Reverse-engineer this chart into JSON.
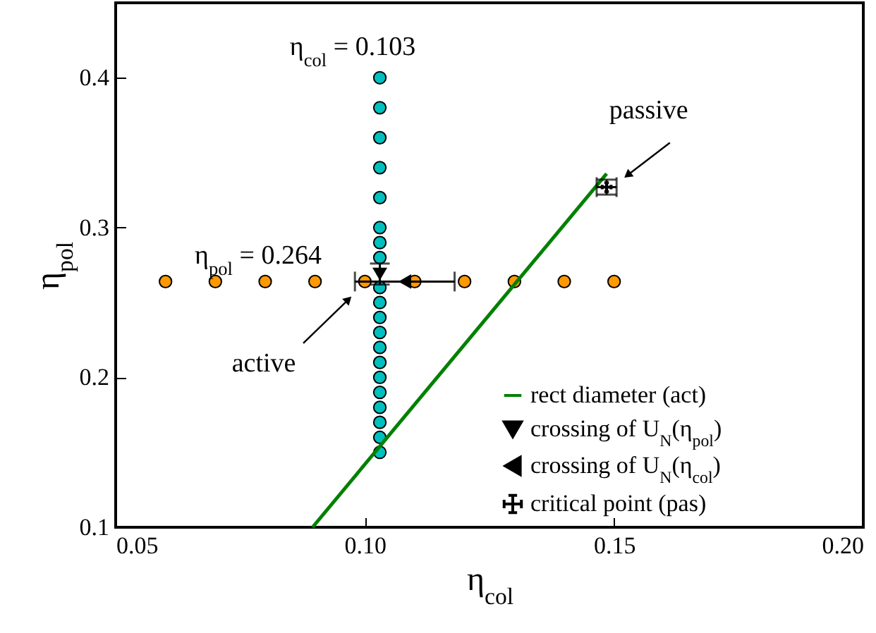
{
  "chart_data": {
    "type": "scatter",
    "xlabel": "η$_{col}$",
    "ylabel": "η$_{pol}$",
    "xlim": [
      0.05,
      0.2
    ],
    "xticks": [
      {
        "value": 0.05,
        "label": "0.05"
      },
      {
        "value": 0.1,
        "label": "0.10"
      },
      {
        "value": 0.15,
        "label": "0.15"
      },
      {
        "value": 0.2,
        "label": "0.20"
      }
    ],
    "ylim": [
      0.1,
      0.45
    ],
    "yticks": [
      0.1,
      0.2,
      0.3,
      0.4
    ],
    "legend": "bottom right",
    "series": [
      {
        "color": "#00bfbf",
        "marker": "circle",
        "x": [
          0.103,
          0.103,
          0.103,
          0.103,
          0.103,
          0.103,
          0.103,
          0.103,
          0.103,
          0.103,
          0.103,
          0.103,
          0.103,
          0.103,
          0.103,
          0.103,
          0.103,
          0.103,
          0.103,
          0.103
        ],
        "values": [
          0.15,
          0.16,
          0.17,
          0.18,
          0.19,
          0.2,
          0.21,
          0.22,
          0.23,
          0.24,
          0.25,
          0.26,
          0.28,
          0.29,
          0.3,
          0.32,
          0.34,
          0.36,
          0.38,
          0.4
        ]
      },
      {
        "color": "#ff9900",
        "marker": "circle",
        "x": [
          0.06,
          0.07,
          0.08,
          0.09,
          0.1,
          0.11,
          0.12,
          0.13,
          0.14,
          0.15
        ],
        "values": [
          0.264,
          0.264,
          0.264,
          0.264,
          0.264,
          0.264,
          0.264,
          0.264,
          0.264,
          0.264
        ]
      },
      {
        "type": "line",
        "name": "rect diameter (act)",
        "color": "#008000",
        "x": [
          0.0895,
          0.1485
        ],
        "values": [
          0.1,
          0.336
        ]
      },
      {
        "name": "crossing of U$_{N}$(η$_{pol}$)",
        "color": "#000000",
        "marker": "triangle-down",
        "x": [
          0.103
        ],
        "values": [
          0.269
        ],
        "errors": [
          [
            0.262,
            0.276
          ]
        ]
      },
      {
        "name": "crossing of U$_{N}$(η$_{col}$)",
        "color": "#000000",
        "marker": "triangle-left",
        "x": [
          0.108
        ],
        "values": [
          0.264
        ],
        "xerrors": [
          [
            0.098,
            0.118
          ]
        ]
      },
      {
        "name": "critical point (pas)",
        "color": "#000000",
        "marker": "cross",
        "x": [
          0.1485
        ],
        "values": [
          0.327
        ],
        "errors": [
          [
            0.322,
            0.332
          ]
        ],
        "xerrors": [
          [
            0.1465,
            0.1505
          ]
        ]
      }
    ],
    "annotations": [
      "η$_{col}$ = 0.103",
      "η$_{pol}$ = 0.264",
      {
        "text": "active",
        "x": 0.0967,
        "y": 0.252
      },
      {
        "text": "passive",
        "x": 0.1527,
        "y": 0.335
      }
    ]
  }
}
